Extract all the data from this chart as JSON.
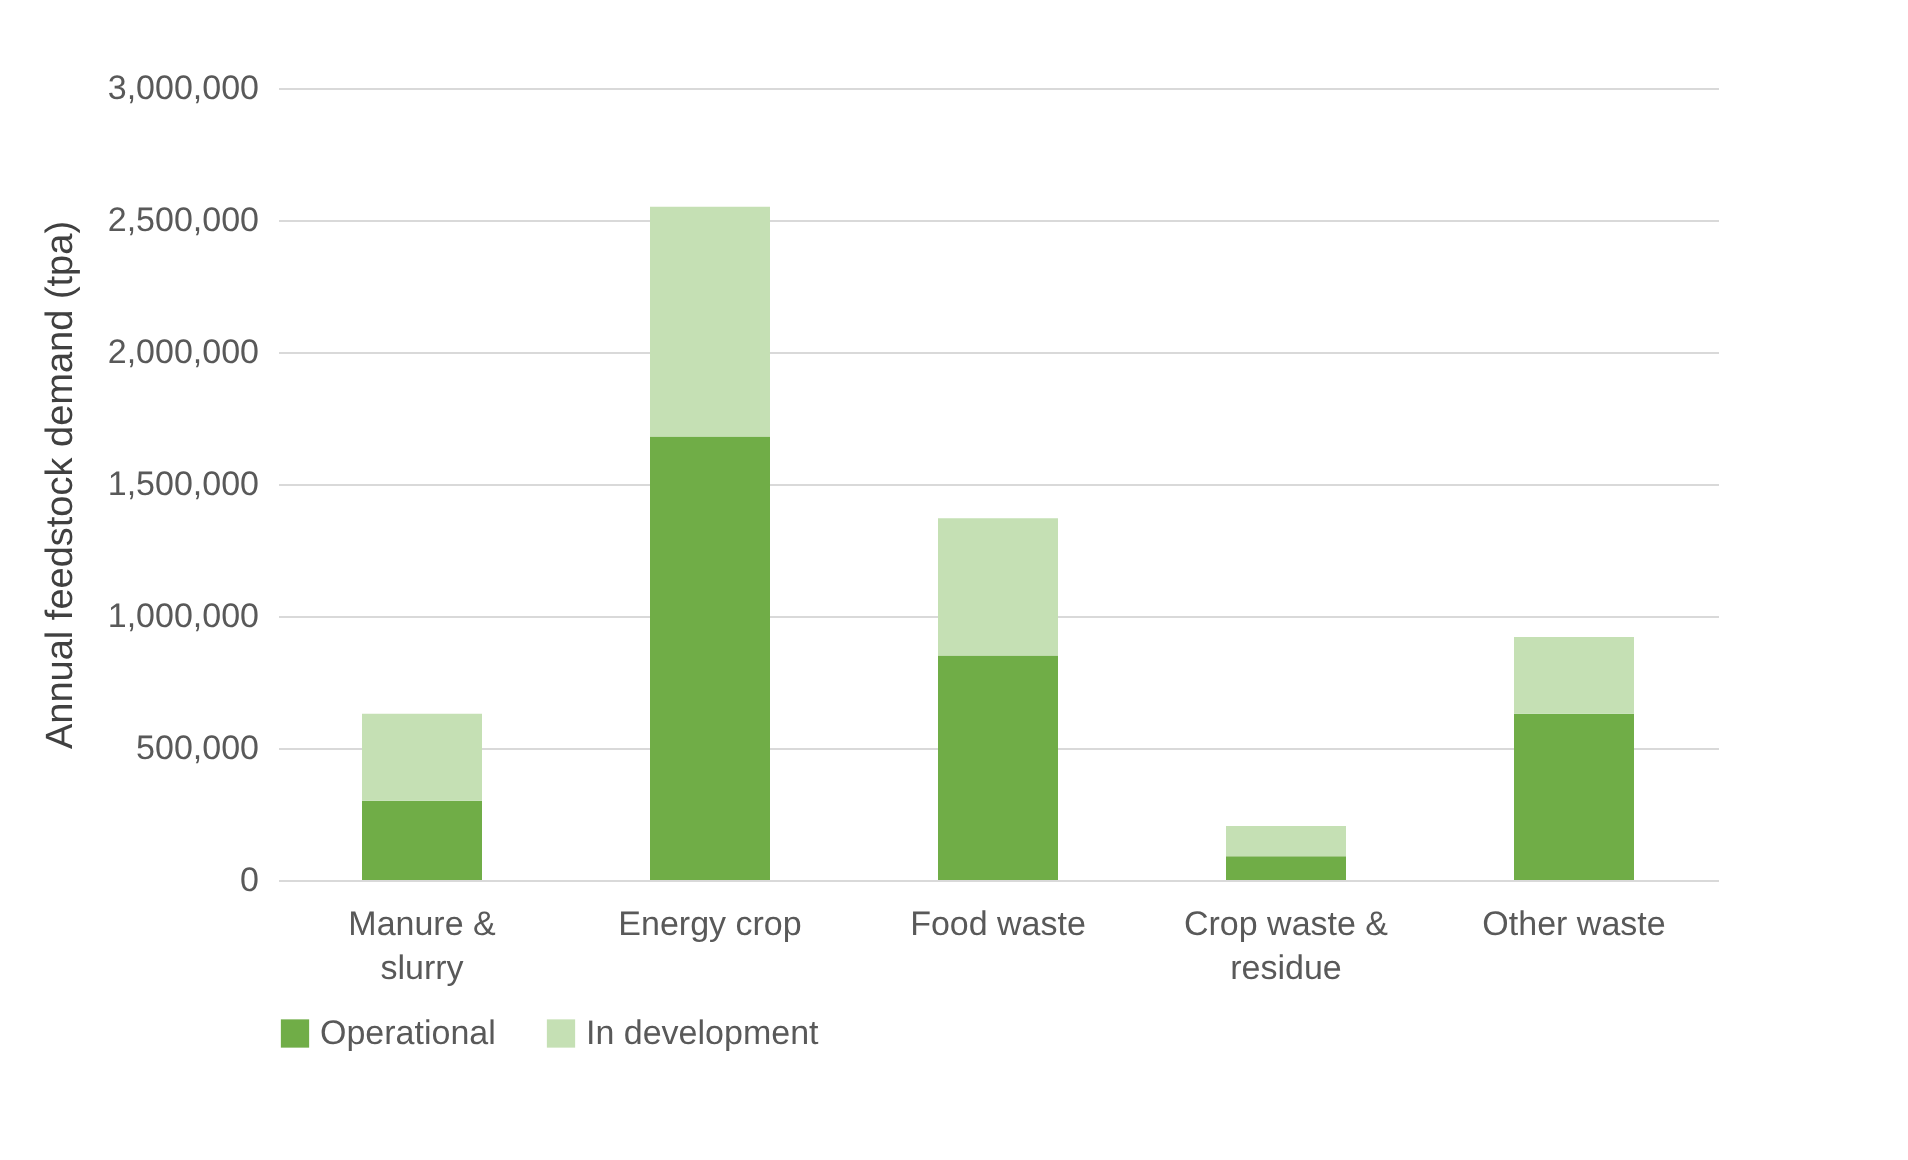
{
  "chart_data": {
    "type": "bar",
    "stacked": true,
    "ylabel": "Annual feedstock demand (tpa)",
    "categories": [
      "Manure & slurry",
      "Energy crop",
      "Food waste",
      "Crop waste & residue",
      "Other waste"
    ],
    "series": [
      {
        "name": "Operational",
        "color": "#70ad47",
        "values": [
          300000,
          1680000,
          850000,
          90000,
          630000
        ]
      },
      {
        "name": "In development",
        "color": "#c5e0b4",
        "values": [
          330000,
          870000,
          520000,
          115000,
          290000
        ]
      }
    ],
    "ylim": [
      0,
      3000000
    ],
    "yticks": [
      0,
      {
        "value": 500000,
        "label": "500,000"
      },
      {
        "value": 1000000,
        "label": "1,000,000"
      },
      {
        "value": 1500000,
        "label": "1,500,000"
      },
      {
        "value": 2000000,
        "label": "2,000,000"
      },
      {
        "value": 2500000,
        "label": "2,500,000"
      },
      {
        "value": 3000000,
        "label": "3,000,000"
      }
    ],
    "grid": "y",
    "legend": "bottom"
  }
}
